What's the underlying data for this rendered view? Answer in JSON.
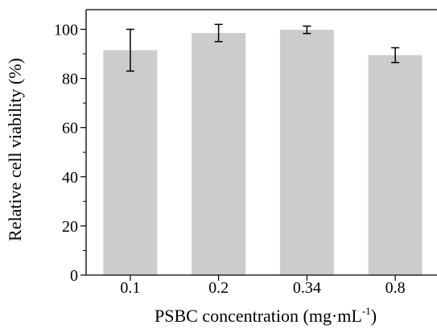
{
  "chart_data": {
    "type": "bar",
    "categories": [
      "0.1",
      "0.2",
      "0.34",
      "0.8"
    ],
    "values": [
      91.5,
      98.5,
      99.8,
      89.5
    ],
    "errors": [
      8.5,
      3.5,
      1.5,
      3.0
    ],
    "xlabel": "PSBC concentration (mg·mL",
    "xlabel_superscript": "-1",
    "xlabel_suffix": ")",
    "ylabel": "Relative cell viability (%)",
    "ylim": [
      0,
      108
    ],
    "yticks": [
      0,
      20,
      40,
      60,
      80,
      100
    ],
    "grid": false,
    "bar_color": "#cccccc",
    "error_color": "#000000"
  }
}
